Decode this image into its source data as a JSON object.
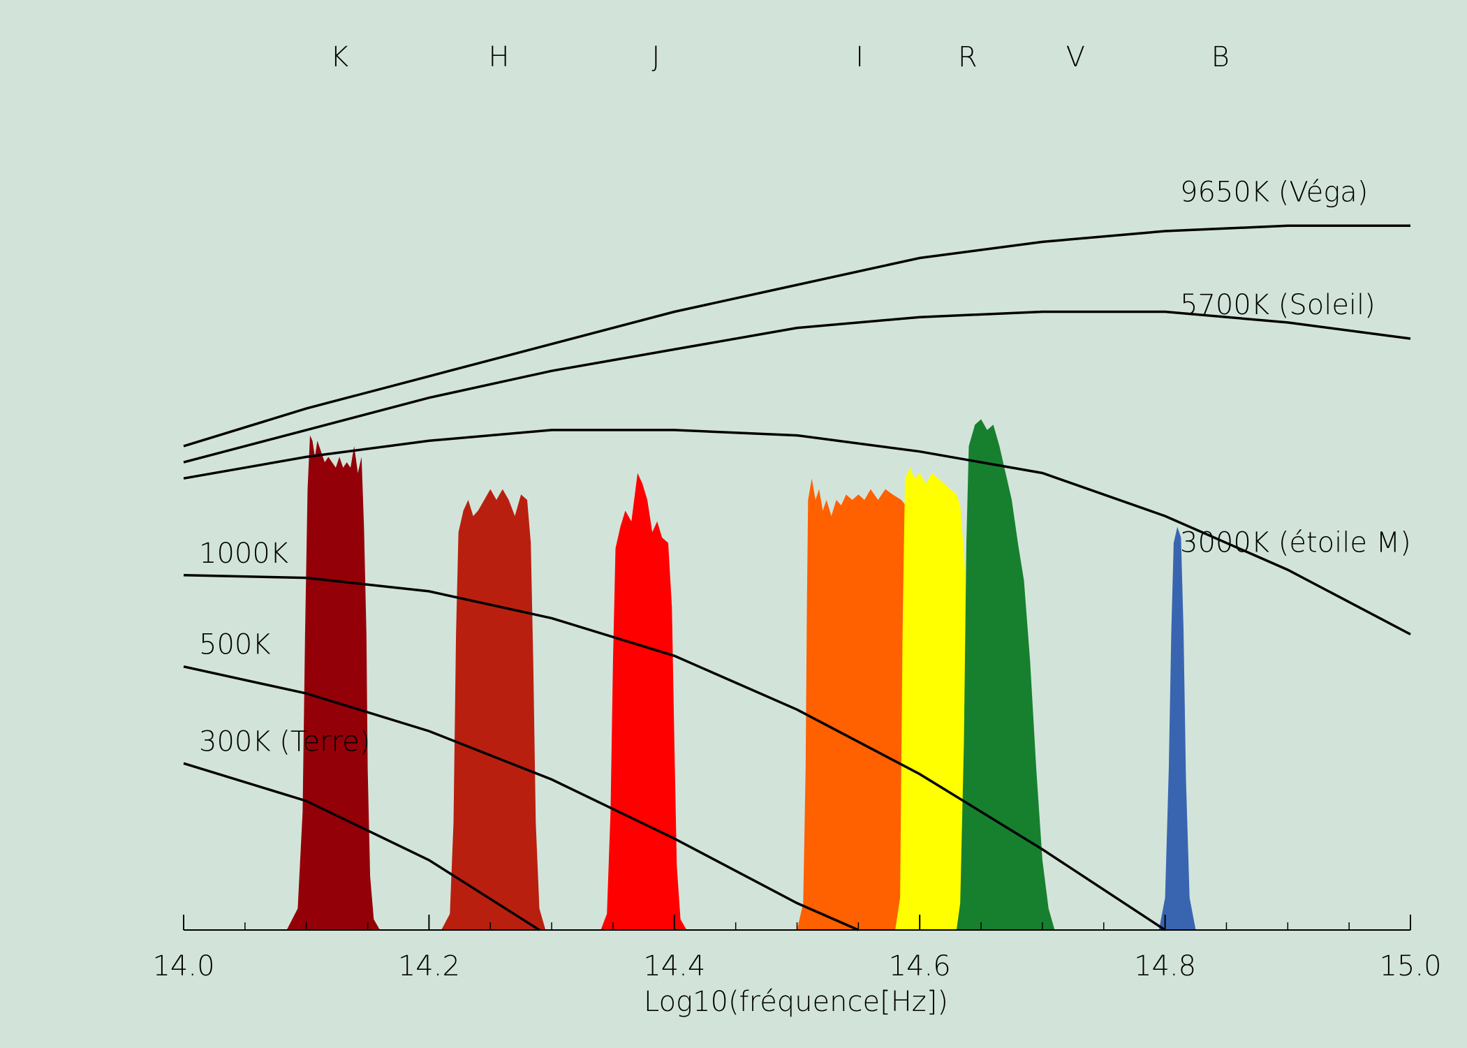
{
  "chart_data": {
    "type": "area",
    "xlabel": "Log10(fréquence[Hz])",
    "ylabel": "",
    "xlim": [
      14.0,
      15.0
    ],
    "grid": false,
    "x_ticks": [
      {
        "value": 14.0,
        "label": "14.0"
      },
      {
        "value": 14.2,
        "label": "14.2"
      },
      {
        "value": 14.4,
        "label": "14.4"
      },
      {
        "value": 14.6,
        "label": "14.6"
      },
      {
        "value": 14.8,
        "label": "14.8"
      },
      {
        "value": 15.0,
        "label": "15.0"
      }
    ],
    "minor_ticks": [
      14.05,
      14.1,
      14.15,
      14.25,
      14.3,
      14.35,
      14.45,
      14.5,
      14.55,
      14.65,
      14.7,
      14.75,
      14.85,
      14.9,
      14.95
    ],
    "band_labels": [
      {
        "name": "K",
        "x": 14.127
      },
      {
        "name": "H",
        "x": 14.257
      },
      {
        "name": "J",
        "x": 14.385
      },
      {
        "name": "I",
        "x": 14.551
      },
      {
        "name": "R",
        "x": 14.639
      },
      {
        "name": "V",
        "x": 14.727
      },
      {
        "name": "B",
        "x": 14.845
      }
    ],
    "filters": [
      {
        "name": "K",
        "color": "#940008",
        "points": [
          [
            14.084,
            0.0
          ],
          [
            14.093,
            0.04
          ],
          [
            14.097,
            0.22
          ],
          [
            14.099,
            0.55
          ],
          [
            14.101,
            0.82
          ],
          [
            14.103,
            0.92
          ],
          [
            14.105,
            0.91
          ],
          [
            14.107,
            0.88
          ],
          [
            14.109,
            0.91
          ],
          [
            14.112,
            0.89
          ],
          [
            14.115,
            0.87
          ],
          [
            14.118,
            0.88
          ],
          [
            14.121,
            0.87
          ],
          [
            14.124,
            0.86
          ],
          [
            14.127,
            0.88
          ],
          [
            14.13,
            0.86
          ],
          [
            14.133,
            0.87
          ],
          [
            14.136,
            0.86
          ],
          [
            14.139,
            0.9
          ],
          [
            14.142,
            0.85
          ],
          [
            14.145,
            0.88
          ],
          [
            14.147,
            0.75
          ],
          [
            14.149,
            0.55
          ],
          [
            14.15,
            0.3
          ],
          [
            14.152,
            0.1
          ],
          [
            14.155,
            0.02
          ],
          [
            14.16,
            0.0
          ]
        ]
      },
      {
        "name": "H",
        "color": "#b91f0f",
        "points": [
          [
            14.21,
            0.0
          ],
          [
            14.217,
            0.03
          ],
          [
            14.22,
            0.2
          ],
          [
            14.222,
            0.55
          ],
          [
            14.224,
            0.74
          ],
          [
            14.228,
            0.78
          ],
          [
            14.232,
            0.8
          ],
          [
            14.236,
            0.77
          ],
          [
            14.24,
            0.78
          ],
          [
            14.245,
            0.8
          ],
          [
            14.25,
            0.82
          ],
          [
            14.255,
            0.8
          ],
          [
            14.26,
            0.82
          ],
          [
            14.265,
            0.8
          ],
          [
            14.27,
            0.77
          ],
          [
            14.275,
            0.81
          ],
          [
            14.28,
            0.8
          ],
          [
            14.283,
            0.72
          ],
          [
            14.285,
            0.5
          ],
          [
            14.287,
            0.2
          ],
          [
            14.29,
            0.04
          ],
          [
            14.295,
            0.0
          ]
        ]
      },
      {
        "name": "J",
        "color": "#ff0000",
        "points": [
          [
            14.34,
            0.0
          ],
          [
            14.345,
            0.03
          ],
          [
            14.348,
            0.22
          ],
          [
            14.35,
            0.5
          ],
          [
            14.352,
            0.71
          ],
          [
            14.356,
            0.75
          ],
          [
            14.36,
            0.78
          ],
          [
            14.365,
            0.76
          ],
          [
            14.37,
            0.85
          ],
          [
            14.374,
            0.83
          ],
          [
            14.378,
            0.8
          ],
          [
            14.382,
            0.74
          ],
          [
            14.386,
            0.76
          ],
          [
            14.39,
            0.73
          ],
          [
            14.395,
            0.72
          ],
          [
            14.398,
            0.6
          ],
          [
            14.4,
            0.35
          ],
          [
            14.402,
            0.12
          ],
          [
            14.405,
            0.02
          ],
          [
            14.41,
            0.0
          ]
        ]
      },
      {
        "name": "I",
        "color": "#ff6000",
        "points": [
          [
            14.5,
            0.0
          ],
          [
            14.505,
            0.05
          ],
          [
            14.507,
            0.3
          ],
          [
            14.508,
            0.6
          ],
          [
            14.509,
            0.8
          ],
          [
            14.512,
            0.84
          ],
          [
            14.515,
            0.8
          ],
          [
            14.518,
            0.82
          ],
          [
            14.521,
            0.78
          ],
          [
            14.524,
            0.8
          ],
          [
            14.528,
            0.77
          ],
          [
            14.532,
            0.8
          ],
          [
            14.536,
            0.79
          ],
          [
            14.54,
            0.81
          ],
          [
            14.545,
            0.8
          ],
          [
            14.55,
            0.81
          ],
          [
            14.555,
            0.8
          ],
          [
            14.56,
            0.82
          ],
          [
            14.566,
            0.8
          ],
          [
            14.572,
            0.82
          ],
          [
            14.578,
            0.81
          ],
          [
            14.585,
            0.8
          ],
          [
            14.592,
            0.78
          ],
          [
            14.596,
            0.72
          ],
          [
            14.6,
            0.55
          ],
          [
            14.604,
            0.35
          ],
          [
            14.607,
            0.18
          ],
          [
            14.61,
            0.05
          ],
          [
            14.614,
            0.0
          ]
        ]
      },
      {
        "name": "R",
        "color": "#ffff00",
        "points": [
          [
            14.58,
            0.0
          ],
          [
            14.584,
            0.06
          ],
          [
            14.586,
            0.55
          ],
          [
            14.588,
            0.84
          ],
          [
            14.592,
            0.86
          ],
          [
            14.596,
            0.84
          ],
          [
            14.6,
            0.85
          ],
          [
            14.605,
            0.83
          ],
          [
            14.61,
            0.85
          ],
          [
            14.615,
            0.84
          ],
          [
            14.62,
            0.83
          ],
          [
            14.625,
            0.82
          ],
          [
            14.63,
            0.81
          ],
          [
            14.633,
            0.79
          ],
          [
            14.636,
            0.7
          ],
          [
            14.64,
            0.55
          ],
          [
            14.645,
            0.38
          ],
          [
            14.65,
            0.22
          ],
          [
            14.655,
            0.09
          ],
          [
            14.66,
            0.02
          ],
          [
            14.665,
            0.0
          ]
        ]
      },
      {
        "name": "V",
        "color": "#17802e",
        "points": [
          [
            14.63,
            0.0
          ],
          [
            14.633,
            0.05
          ],
          [
            14.636,
            0.35
          ],
          [
            14.638,
            0.72
          ],
          [
            14.64,
            0.9
          ],
          [
            14.645,
            0.94
          ],
          [
            14.65,
            0.95
          ],
          [
            14.655,
            0.93
          ],
          [
            14.66,
            0.94
          ],
          [
            14.665,
            0.9
          ],
          [
            14.67,
            0.85
          ],
          [
            14.675,
            0.8
          ],
          [
            14.68,
            0.72
          ],
          [
            14.685,
            0.65
          ],
          [
            14.69,
            0.5
          ],
          [
            14.695,
            0.3
          ],
          [
            14.7,
            0.13
          ],
          [
            14.705,
            0.04
          ],
          [
            14.71,
            0.0
          ]
        ]
      },
      {
        "name": "B",
        "color": "#3965b0",
        "points": [
          [
            14.795,
            0.0
          ],
          [
            14.8,
            0.06
          ],
          [
            14.803,
            0.3
          ],
          [
            14.805,
            0.55
          ],
          [
            14.807,
            0.72
          ],
          [
            14.81,
            0.75
          ],
          [
            14.813,
            0.73
          ],
          [
            14.815,
            0.56
          ],
          [
            14.817,
            0.28
          ],
          [
            14.82,
            0.06
          ],
          [
            14.825,
            0.0
          ]
        ]
      }
    ],
    "curves": [
      {
        "label": "9650K (Véga)",
        "points": [
          [
            14.0,
            0.9
          ],
          [
            14.1,
            0.97
          ],
          [
            14.2,
            1.03
          ],
          [
            14.3,
            1.09
          ],
          [
            14.4,
            1.15
          ],
          [
            14.5,
            1.2
          ],
          [
            14.6,
            1.25
          ],
          [
            14.7,
            1.28
          ],
          [
            14.8,
            1.3
          ],
          [
            14.9,
            1.31
          ],
          [
            15.0,
            1.31
          ]
        ]
      },
      {
        "label": "5700K (Soleil)",
        "points": [
          [
            14.0,
            0.87
          ],
          [
            14.1,
            0.93
          ],
          [
            14.2,
            0.99
          ],
          [
            14.3,
            1.04
          ],
          [
            14.4,
            1.08
          ],
          [
            14.5,
            1.12
          ],
          [
            14.6,
            1.14
          ],
          [
            14.7,
            1.15
          ],
          [
            14.8,
            1.15
          ],
          [
            14.9,
            1.13
          ],
          [
            15.0,
            1.1
          ]
        ]
      },
      {
        "label": "3000K (étoile M)",
        "points": [
          [
            14.0,
            0.84
          ],
          [
            14.1,
            0.88
          ],
          [
            14.2,
            0.91
          ],
          [
            14.3,
            0.93
          ],
          [
            14.4,
            0.93
          ],
          [
            14.5,
            0.92
          ],
          [
            14.6,
            0.89
          ],
          [
            14.7,
            0.85
          ],
          [
            14.8,
            0.77
          ],
          [
            14.9,
            0.67
          ],
          [
            15.0,
            0.55
          ]
        ]
      },
      {
        "label": "1000K",
        "points": [
          [
            14.0,
            0.66
          ],
          [
            14.1,
            0.655
          ],
          [
            14.2,
            0.63
          ],
          [
            14.3,
            0.58
          ],
          [
            14.4,
            0.51
          ],
          [
            14.5,
            0.41
          ],
          [
            14.6,
            0.29
          ],
          [
            14.7,
            0.15
          ],
          [
            14.8,
            0.0
          ]
        ]
      },
      {
        "label": "500K",
        "points": [
          [
            14.0,
            0.49
          ],
          [
            14.1,
            0.44
          ],
          [
            14.2,
            0.37
          ],
          [
            14.3,
            0.28
          ],
          [
            14.4,
            0.17
          ],
          [
            14.5,
            0.05
          ],
          [
            14.55,
            0.0
          ]
        ]
      },
      {
        "label": "300K (Terre)",
        "points": [
          [
            14.0,
            0.31
          ],
          [
            14.1,
            0.24
          ],
          [
            14.2,
            0.13
          ],
          [
            14.29,
            0.0
          ]
        ]
      }
    ],
    "curve_label_positions": [
      "right",
      "right",
      "right",
      "left",
      "left",
      "left"
    ]
  }
}
